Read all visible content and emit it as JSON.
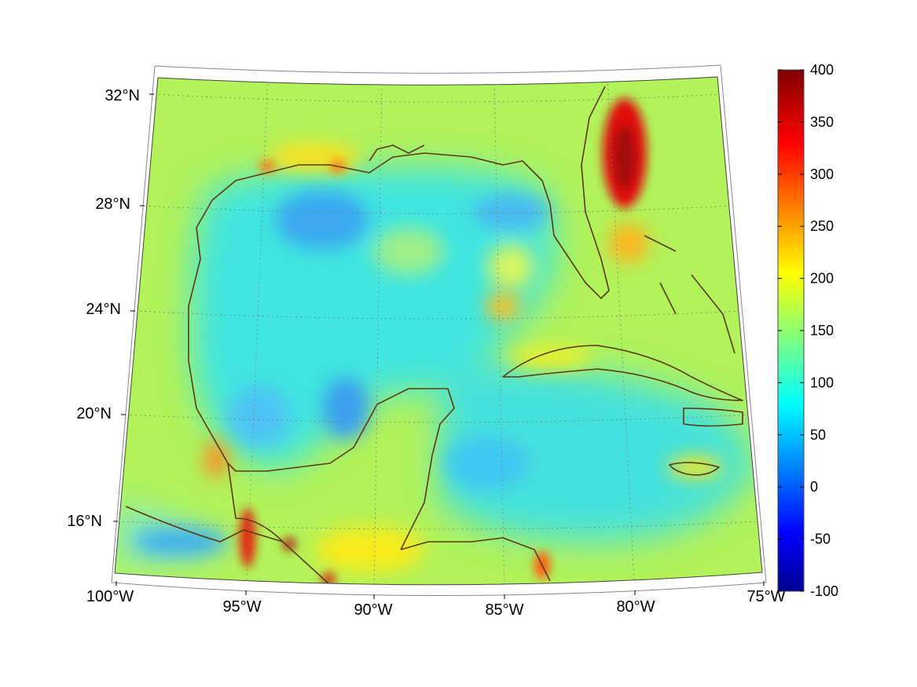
{
  "map": {
    "longitude_labels": [
      "100°W",
      "95°W",
      "90°W",
      "85°W",
      "80°W",
      "75°W"
    ],
    "latitude_labels": [
      "32°N",
      "28°N",
      "24°N",
      "20°N",
      "16°N"
    ],
    "land_outline_color": "#5c3a10",
    "grid_line_color": "#7a7a7a"
  },
  "colorbar": {
    "tick_labels": [
      "400",
      "350",
      "300",
      "250",
      "200",
      "150",
      "100",
      "50",
      "0",
      "-50",
      "-100"
    ],
    "min": -100,
    "max": 400,
    "colormap": "jet"
  }
}
